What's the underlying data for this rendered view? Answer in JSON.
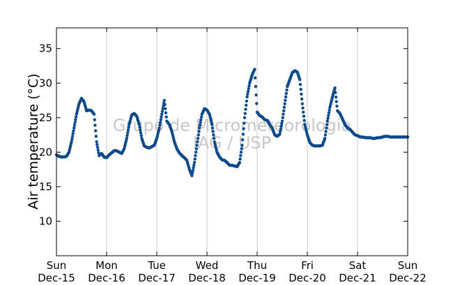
{
  "chart_data": {
    "type": "scatter",
    "ylabel": "Air temperature (°C)",
    "xlabel": "",
    "ylim": [
      5,
      38
    ],
    "xlim": [
      0,
      7
    ],
    "grid": "vertical",
    "yticks": [
      10,
      15,
      20,
      25,
      30,
      35
    ],
    "xticks": [
      {
        "x": 0,
        "day": "Sun",
        "date": "Dec-15"
      },
      {
        "x": 1,
        "day": "Mon",
        "date": "Dec-16"
      },
      {
        "x": 2,
        "day": "Tue",
        "date": "Dec-17"
      },
      {
        "x": 3,
        "day": "Wed",
        "date": "Dec-18"
      },
      {
        "x": 4,
        "day": "Thu",
        "date": "Dec-19"
      },
      {
        "x": 5,
        "day": "Fri",
        "date": "Dec-20"
      },
      {
        "x": 6,
        "day": "Sat",
        "date": "Dec-21"
      },
      {
        "x": 7,
        "day": "Sun",
        "date": "Dec-22"
      }
    ],
    "watermark": [
      "Grupo de Micrometeorologia",
      "IAG / USP"
    ],
    "colors": {
      "marker": "#0d4a8c",
      "grid": "#c8c8c8"
    },
    "series": [
      {
        "x": [
          0,
          0.05,
          0.1,
          0.15,
          0.2,
          0.25,
          0.3,
          0.35,
          0.4,
          0.45,
          0.5,
          0.55,
          0.6,
          0.65,
          0.7,
          0.75,
          0.8,
          0.85,
          0.9,
          0.95,
          1.0,
          1.05,
          1.1,
          1.15,
          1.2,
          1.25,
          1.3,
          1.35,
          1.4,
          1.45,
          1.5,
          1.55,
          1.6,
          1.65,
          1.7,
          1.75,
          1.8,
          1.85,
          1.9,
          1.95,
          2.0,
          2.05,
          2.1,
          2.15,
          2.2,
          2.25,
          2.3,
          2.35,
          2.4,
          2.45,
          2.5,
          2.55,
          2.6,
          2.65,
          2.7,
          2.75,
          2.8,
          2.85,
          2.9,
          2.95,
          3.0,
          3.05,
          3.1,
          3.15,
          3.2,
          3.25,
          3.3,
          3.35,
          3.4,
          3.45,
          3.5,
          3.55,
          3.6,
          3.65,
          3.7,
          3.75,
          3.8,
          3.85,
          3.9,
          3.95,
          4.0,
          4.05,
          4.1,
          4.15,
          4.2,
          4.25,
          4.3,
          4.35,
          4.4,
          4.45,
          4.5,
          4.55,
          4.6,
          4.65,
          4.7,
          4.75,
          4.8,
          4.85,
          4.9,
          4.95,
          5.0,
          5.05,
          5.1,
          5.15,
          5.2,
          5.25,
          5.3,
          5.35,
          5.4,
          5.45,
          5.5,
          5.55,
          5.6,
          5.65,
          5.7,
          5.75,
          5.8,
          5.85,
          5.9,
          5.95,
          6.0,
          6.05,
          6.1,
          6.15,
          6.2,
          6.25,
          6.3,
          6.35,
          6.4,
          6.45,
          6.5,
          6.55,
          6.6,
          6.65,
          6.7,
          6.75,
          6.8,
          6.85,
          6.9,
          6.95,
          7.0
        ],
        "y": [
          19.6,
          19.4,
          19.3,
          19.3,
          19.4,
          20.0,
          21.5,
          23.5,
          25.5,
          27.0,
          27.8,
          27.3,
          26.0,
          26.1,
          26.0,
          25.5,
          21.5,
          19.5,
          19.8,
          19.3,
          19.2,
          19.6,
          19.9,
          20.2,
          20.2,
          20.0,
          19.8,
          20.5,
          22.0,
          24.0,
          25.4,
          25.6,
          25.2,
          24.0,
          22.0,
          20.9,
          20.7,
          20.6,
          20.8,
          21.0,
          22.0,
          23.5,
          25.5,
          27.5,
          24.5,
          24.0,
          23.0,
          21.5,
          20.5,
          19.9,
          19.5,
          19.2,
          18.8,
          17.5,
          16.6,
          18.5,
          21.0,
          23.5,
          25.5,
          26.3,
          26.1,
          25.5,
          24.0,
          21.5,
          20.0,
          19.3,
          18.9,
          18.8,
          18.5,
          18.1,
          18.1,
          18.0,
          17.9,
          18.5,
          21.0,
          25.0,
          28.0,
          30.0,
          31.2,
          32.0,
          25.8,
          25.3,
          25.1,
          24.7,
          24.6,
          24.0,
          23.5,
          22.5,
          22.3,
          22.6,
          24.5,
          27.0,
          29.5,
          30.5,
          31.5,
          31.8,
          31.6,
          30.5,
          27.0,
          24.0,
          22.5,
          21.4,
          21.0,
          20.9,
          20.9,
          20.9,
          21.0,
          22.0,
          24.5,
          26.5,
          28.0,
          29.3,
          26.0,
          25.6,
          24.8,
          24.0,
          23.5,
          23.3,
          22.9,
          22.5,
          22.4,
          22.2,
          22.2,
          22.1,
          22.1,
          22.1,
          22.0,
          22.0,
          22.1,
          22.1,
          22.2,
          22.3,
          22.3,
          22.2,
          22.2,
          22.2,
          22.2,
          22.2,
          22.2,
          22.2,
          22.2
        ]
      }
    ]
  }
}
